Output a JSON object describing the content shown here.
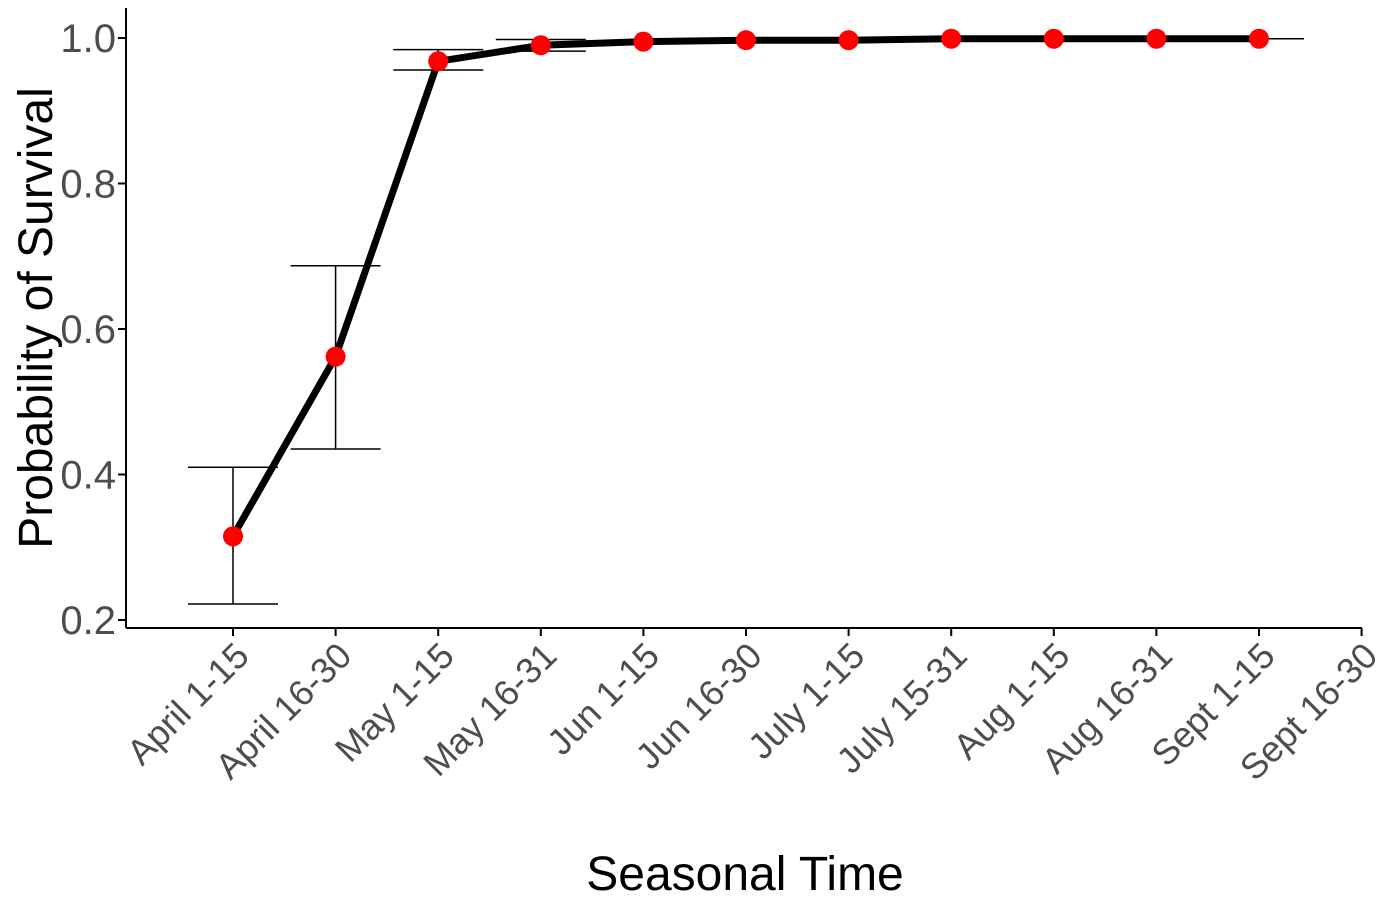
{
  "chart_data": {
    "type": "line",
    "title": "",
    "xlabel": "Seasonal Time",
    "ylabel": "Probability of Survival",
    "categories": [
      "April 1-15",
      "April 16-30",
      "May 1-15",
      "May 16-31",
      "Jun 1-15",
      "Jun 16-30",
      "July 1-15",
      "July 15-31",
      "Aug 1-15",
      "Aug 16-31",
      "Sept 1-15",
      "Sept 16-30"
    ],
    "values": [
      0.315,
      0.562,
      0.968,
      0.99,
      0.995,
      0.997,
      0.997,
      0.999,
      0.999,
      0.999,
      0.999,
      null
    ],
    "error_bars": {
      "lower": [
        0.222,
        0.435,
        0.956,
        0.982,
        null,
        null,
        null,
        null,
        null,
        null,
        null,
        null
      ],
      "upper": [
        0.41,
        0.687,
        0.984,
        0.998,
        null,
        null,
        null,
        null,
        null,
        null,
        0.999,
        null
      ]
    },
    "y_ticks": [
      "0.2",
      "0.4",
      "0.6",
      "0.8",
      "1.0"
    ],
    "ylim": [
      0.187,
      1.04
    ],
    "grid": false,
    "colors": {
      "line": "#000000",
      "points": "#ff0000",
      "axis": "#000000",
      "tick_labels": "#4d4d4d"
    }
  }
}
